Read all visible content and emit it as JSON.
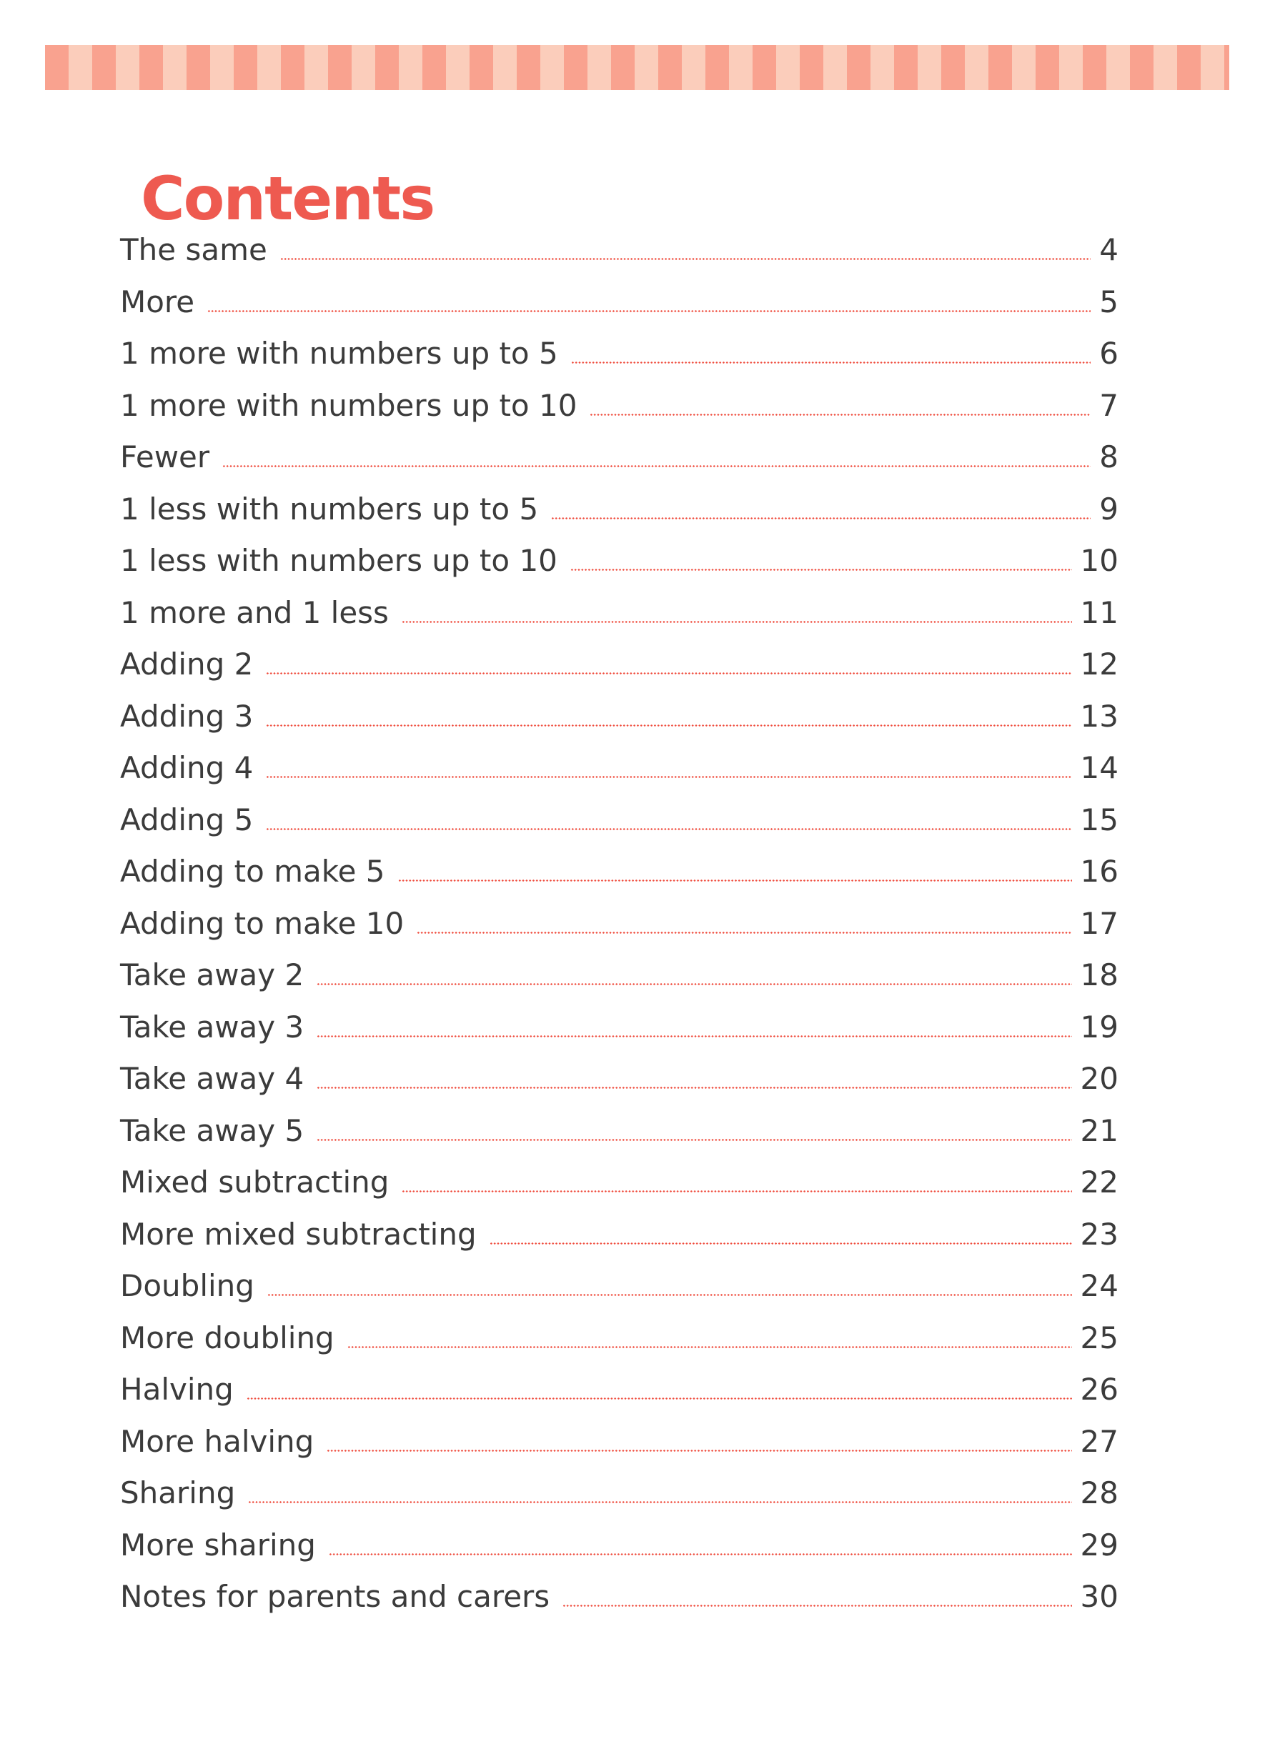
{
  "page": {
    "title": "Contents"
  },
  "colors": {
    "stripe_dark": "#F9A28F",
    "stripe_light": "#FBCDBB",
    "title_red": "#EE5A50",
    "text_dark": "#3B3B3B",
    "dot_red": "#EF4B3C"
  },
  "toc": {
    "entries": [
      {
        "label": "The same",
        "page": "4"
      },
      {
        "label": "More",
        "page": "5"
      },
      {
        "label": "1 more with numbers up to 5",
        "page": "6"
      },
      {
        "label": "1 more with numbers up to 10",
        "page": "7"
      },
      {
        "label": "Fewer",
        "page": "8"
      },
      {
        "label": "1 less with numbers up to 5",
        "page": "9"
      },
      {
        "label": "1 less with numbers up to 10",
        "page": "10"
      },
      {
        "label": "1 more and 1 less",
        "page": "11"
      },
      {
        "label": "Adding 2",
        "page": "12"
      },
      {
        "label": "Adding 3",
        "page": "13"
      },
      {
        "label": "Adding 4",
        "page": "14"
      },
      {
        "label": "Adding 5",
        "page": "15"
      },
      {
        "label": "Adding to make 5",
        "page": "16"
      },
      {
        "label": "Adding to make 10",
        "page": "17"
      },
      {
        "label": "Take away 2",
        "page": "18"
      },
      {
        "label": "Take away 3",
        "page": "19"
      },
      {
        "label": "Take away 4",
        "page": "20"
      },
      {
        "label": "Take away 5",
        "page": "21"
      },
      {
        "label": "Mixed subtracting",
        "page": "22"
      },
      {
        "label": "More mixed subtracting",
        "page": "23"
      },
      {
        "label": "Doubling",
        "page": "24"
      },
      {
        "label": "More doubling",
        "page": "25"
      },
      {
        "label": "Halving",
        "page": "26"
      },
      {
        "label": "More halving",
        "page": "27"
      },
      {
        "label": "Sharing",
        "page": "28"
      },
      {
        "label": "More sharing",
        "page": "29"
      },
      {
        "label": "Notes for parents and carers",
        "page": "30"
      }
    ]
  }
}
